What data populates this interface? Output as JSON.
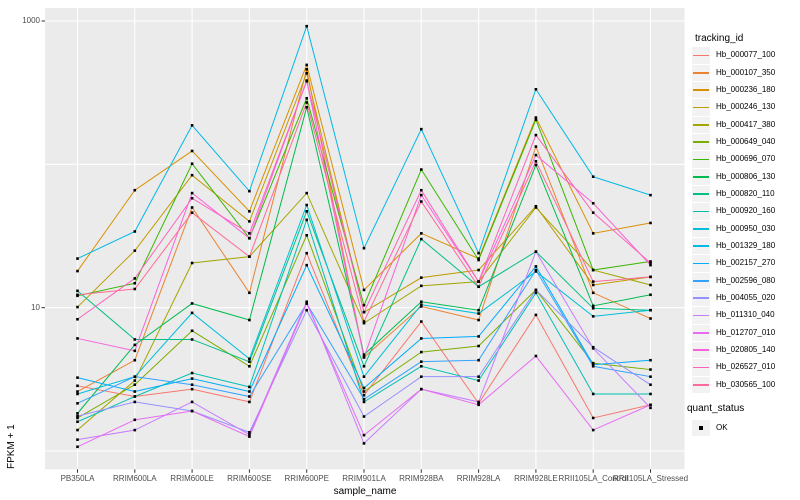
{
  "chart_data": {
    "type": "line",
    "title": "",
    "xlabel": "sample_name",
    "ylabel": "FPKM + 1",
    "y_scale": "log10",
    "ylim": [
      0.75,
      1150
    ],
    "grid": true,
    "y_axis": {
      "tick_labels": [
        "1000",
        "10"
      ],
      "labeled_breaks": [
        1000,
        10
      ],
      "gridline_values": [
        1,
        10,
        100,
        1000
      ]
    },
    "style": {
      "panel_bg": "#EBEBEB",
      "grid_color": "#FFFFFF",
      "point_color": "#000000",
      "axis_text_color": "#4D4D4D",
      "tick_color": "#333333",
      "legend_key_bg": "#F2F2F2"
    },
    "legend": {
      "title": "tracking_id",
      "position": "right"
    },
    "quant_status": {
      "title": "quant_status",
      "entries": [
        {
          "label": "OK",
          "symbol": "black-square"
        }
      ]
    },
    "categories": [
      "PB350LA",
      "RRIM600LA",
      "RRIM600LE",
      "RRIM600SE",
      "RRIM600PE",
      "RRIM901LA",
      "RRIM928BA",
      "RRIM928LA",
      "RRIM928LE",
      "RRII105LA_Control",
      "RRII105LA_Stressed"
    ],
    "series": [
      {
        "name": "Hb_000077_100",
        "color": "#F8766D",
        "values": [
          2.85,
          2.4,
          2.7,
          2.2,
          24,
          2.45,
          8.0,
          2.15,
          8.9,
          1.7,
          2.1
        ]
      },
      {
        "name": "Hb_000107_350",
        "color": "#EA8331",
        "values": [
          2.6,
          4.3,
          50,
          12.7,
          460,
          4.5,
          10.2,
          8.2,
          133,
          12.7,
          8.4
        ]
      },
      {
        "name": "Hb_000236_180",
        "color": "#D89000",
        "values": [
          18,
          66,
          124,
          47,
          494,
          13.3,
          33,
          22,
          212,
          33,
          39
        ]
      },
      {
        "name": "Hb_000246_130",
        "color": "#C09B00",
        "values": [
          10.1,
          25,
          84,
          40,
          432,
          9.3,
          16.2,
          18.3,
          51,
          14.4,
          16.4
        ]
      },
      {
        "name": "Hb_000417_380",
        "color": "#A3A500",
        "values": [
          1.4,
          3.1,
          20.5,
          22.7,
          63,
          7.8,
          14.2,
          15.2,
          50,
          18.3,
          14.4
        ]
      },
      {
        "name": "Hb_000649_040",
        "color": "#7CAE00",
        "values": [
          1.7,
          2.9,
          6.9,
          3.9,
          32,
          2.6,
          4.9,
          5.4,
          13.3,
          4.1,
          3.7
        ]
      },
      {
        "name": "Hb_000696_070",
        "color": "#39B600",
        "values": [
          12.1,
          14.8,
          101,
          30.5,
          289,
          10.4,
          92,
          21.5,
          205,
          18.3,
          21
        ]
      },
      {
        "name": "Hb_000806_130",
        "color": "#00BB4E",
        "values": [
          1.83,
          5.5,
          10.7,
          8.2,
          250,
          4.7,
          11,
          9.6,
          99,
          10.3,
          12.3
        ]
      },
      {
        "name": "Hb_000820_110",
        "color": "#00C087",
        "values": [
          13.1,
          6,
          6,
          4.2,
          47,
          3.9,
          30.1,
          14,
          24.6,
          9.9,
          9.6
        ]
      },
      {
        "name": "Hb_000920_160",
        "color": "#00C0B2",
        "values": [
          1.6,
          2.4,
          3.5,
          2.8,
          41,
          2.2,
          3.9,
          3.1,
          12.7,
          2.5,
          2.5
        ]
      },
      {
        "name": "Hb_000950_030",
        "color": "#00BFD8",
        "values": [
          2.5,
          3.3,
          9.2,
          4.4,
          52,
          3.3,
          10.5,
          9.1,
          17.9,
          8.7,
          9.6
        ]
      },
      {
        "name": "Hb_001329_180",
        "color": "#00B8E5",
        "values": [
          22,
          34,
          187,
          65,
          920,
          26,
          176,
          24,
          334,
          82,
          61
        ]
      },
      {
        "name": "Hb_002157_270",
        "color": "#00ACFC",
        "values": [
          3.25,
          2.6,
          3.2,
          2.6,
          19.8,
          2.75,
          6.1,
          6.3,
          19.4,
          4.0,
          4.3
        ]
      },
      {
        "name": "Hb_002596_080",
        "color": "#35A2FF",
        "values": [
          2.15,
          3.3,
          2.9,
          2.4,
          10.7,
          2.3,
          4.2,
          4.3,
          18.3,
          3.9,
          3.3
        ]
      },
      {
        "name": "Hb_004055_020",
        "color": "#9590FF",
        "values": [
          1.75,
          2.2,
          1.9,
          1.35,
          9.6,
          1.74,
          3.3,
          3.3,
          13.3,
          5.3,
          2.9
        ]
      },
      {
        "name": "Hb_011310_040",
        "color": "#C77CFF",
        "values": [
          1.2,
          1.4,
          2.2,
          1.3,
          11,
          1.13,
          2.7,
          2.2,
          24.6,
          5.2,
          2.0
        ]
      },
      {
        "name": "Hb_012707_010",
        "color": "#E76BF3",
        "values": [
          1.07,
          1.65,
          1.9,
          1.26,
          10.7,
          1.29,
          2.7,
          2.1,
          4.6,
          1.4,
          2.1
        ]
      },
      {
        "name": "Hb_020805_140",
        "color": "#FA62DB",
        "values": [
          6.1,
          5.0,
          63,
          30.5,
          384,
          4.5,
          61,
          15.2,
          116,
          53.5,
          19.8
        ]
      },
      {
        "name": "Hb_026527_010",
        "color": "#FF62BC",
        "values": [
          8.3,
          16,
          58,
          33,
          380,
          9.3,
          66,
          15.2,
          160,
          46,
          20.5
        ]
      },
      {
        "name": "Hb_030565_100",
        "color": "#FF6A98",
        "values": [
          12.3,
          13.5,
          46,
          22.7,
          270,
          8.0,
          55,
          14,
          105,
          15.2,
          16.4
        ]
      }
    ]
  }
}
